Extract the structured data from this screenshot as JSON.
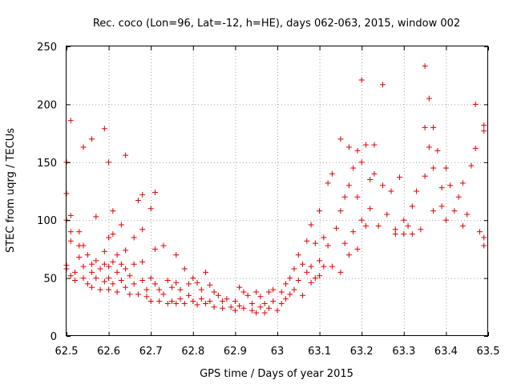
{
  "chart_data": {
    "type": "scatter",
    "title": "Rec. coco (Lon=96, Lat=-12, h=HE), days 062-063, 2015, window 002",
    "xlabel": "GPS time / Days of year 2015",
    "ylabel": "STEC from uqrg / TECUs",
    "xlim": [
      62.5,
      63.5
    ],
    "ylim": [
      0,
      250
    ],
    "xticks": [
      "62.5",
      "62.6",
      "62.7",
      "62.8",
      "62.9",
      "63",
      "63.1",
      "63.2",
      "63.3",
      "63.4",
      "63.5"
    ],
    "yticks": [
      "0",
      "50",
      "100",
      "150",
      "200",
      "250"
    ],
    "grid": true,
    "marker": "+",
    "color": "#e00000",
    "series": [
      {
        "name": "STEC",
        "points": [
          [
            62.5,
            123
          ],
          [
            62.5,
            150
          ],
          [
            62.5,
            100
          ],
          [
            62.51,
            104
          ],
          [
            62.51,
            186
          ],
          [
            62.51,
            90
          ],
          [
            62.51,
            82
          ],
          [
            62.5,
            61
          ],
          [
            62.5,
            58
          ],
          [
            62.51,
            52
          ],
          [
            62.52,
            55
          ],
          [
            62.52,
            48
          ],
          [
            62.53,
            90
          ],
          [
            62.53,
            78
          ],
          [
            62.53,
            68
          ],
          [
            62.54,
            163
          ],
          [
            62.54,
            78
          ],
          [
            62.54,
            60
          ],
          [
            62.54,
            50
          ],
          [
            62.55,
            45
          ],
          [
            62.55,
            70
          ],
          [
            62.56,
            170
          ],
          [
            62.56,
            62
          ],
          [
            62.56,
            55
          ],
          [
            62.56,
            42
          ],
          [
            62.57,
            103
          ],
          [
            62.57,
            65
          ],
          [
            62.57,
            50
          ],
          [
            62.58,
            58
          ],
          [
            62.58,
            40
          ],
          [
            62.59,
            179
          ],
          [
            62.59,
            73
          ],
          [
            62.59,
            62
          ],
          [
            62.59,
            47
          ],
          [
            62.6,
            150
          ],
          [
            62.6,
            85
          ],
          [
            62.6,
            60
          ],
          [
            62.6,
            50
          ],
          [
            62.6,
            40
          ],
          [
            62.61,
            108
          ],
          [
            62.61,
            88
          ],
          [
            62.61,
            64
          ],
          [
            62.61,
            45
          ],
          [
            62.62,
            70
          ],
          [
            62.62,
            55
          ],
          [
            62.62,
            38
          ],
          [
            62.63,
            96
          ],
          [
            62.63,
            62
          ],
          [
            62.63,
            48
          ],
          [
            62.64,
            156
          ],
          [
            62.64,
            74
          ],
          [
            62.64,
            58
          ],
          [
            62.64,
            42
          ],
          [
            62.65,
            52
          ],
          [
            62.65,
            36
          ],
          [
            62.66,
            85
          ],
          [
            62.66,
            62
          ],
          [
            62.66,
            45
          ],
          [
            62.67,
            117
          ],
          [
            62.67,
            36
          ],
          [
            62.68,
            122
          ],
          [
            62.68,
            92
          ],
          [
            62.68,
            64
          ],
          [
            62.68,
            48
          ],
          [
            62.69,
            40
          ],
          [
            62.69,
            34
          ],
          [
            62.7,
            110
          ],
          [
            62.7,
            50
          ],
          [
            62.7,
            30
          ],
          [
            62.71,
            124
          ],
          [
            62.71,
            75
          ],
          [
            62.71,
            45
          ],
          [
            62.72,
            40
          ],
          [
            62.72,
            30
          ],
          [
            62.73,
            78
          ],
          [
            62.73,
            36
          ],
          [
            62.74,
            48
          ],
          [
            62.74,
            28
          ],
          [
            62.75,
            42
          ],
          [
            62.75,
            30
          ],
          [
            62.76,
            70
          ],
          [
            62.76,
            46
          ],
          [
            62.76,
            28
          ],
          [
            62.77,
            40
          ],
          [
            62.77,
            32
          ],
          [
            62.78,
            58
          ],
          [
            62.78,
            28
          ],
          [
            62.79,
            45
          ],
          [
            62.79,
            35
          ],
          [
            62.8,
            50
          ],
          [
            62.8,
            30
          ],
          [
            62.81,
            46
          ],
          [
            62.81,
            27
          ],
          [
            62.82,
            40
          ],
          [
            62.82,
            32
          ],
          [
            62.83,
            55
          ],
          [
            62.83,
            28
          ],
          [
            62.84,
            44
          ],
          [
            62.84,
            30
          ],
          [
            62.85,
            38
          ],
          [
            62.85,
            25
          ],
          [
            62.86,
            35
          ],
          [
            62.87,
            30
          ],
          [
            62.87,
            24
          ],
          [
            62.88,
            32
          ],
          [
            62.89,
            25
          ],
          [
            62.9,
            30
          ],
          [
            62.9,
            22
          ],
          [
            62.91,
            42
          ],
          [
            62.91,
            26
          ],
          [
            62.92,
            38
          ],
          [
            62.92,
            24
          ],
          [
            62.93,
            35
          ],
          [
            62.94,
            28
          ],
          [
            62.94,
            22
          ],
          [
            62.95,
            38
          ],
          [
            62.95,
            20
          ],
          [
            62.96,
            34
          ],
          [
            62.96,
            25
          ],
          [
            62.97,
            28
          ],
          [
            62.97,
            20
          ],
          [
            62.98,
            38
          ],
          [
            62.98,
            24
          ],
          [
            62.99,
            40
          ],
          [
            62.99,
            30
          ],
          [
            63.0,
            22
          ],
          [
            63.01,
            38
          ],
          [
            63.01,
            28
          ],
          [
            63.02,
            45
          ],
          [
            63.02,
            32
          ],
          [
            63.03,
            50
          ],
          [
            63.03,
            36
          ],
          [
            63.04,
            58
          ],
          [
            63.04,
            40
          ],
          [
            63.05,
            70
          ],
          [
            63.05,
            48
          ],
          [
            63.06,
            62
          ],
          [
            63.06,
            35
          ],
          [
            63.07,
            82
          ],
          [
            63.07,
            55
          ],
          [
            63.08,
            96
          ],
          [
            63.08,
            60
          ],
          [
            63.08,
            46
          ],
          [
            63.09,
            80
          ],
          [
            63.09,
            50
          ],
          [
            63.1,
            108
          ],
          [
            63.1,
            65
          ],
          [
            63.1,
            52
          ],
          [
            63.11,
            85
          ],
          [
            63.11,
            60
          ],
          [
            63.12,
            132
          ],
          [
            63.12,
            78
          ],
          [
            63.13,
            140
          ],
          [
            63.13,
            60
          ],
          [
            63.14,
            93
          ],
          [
            63.15,
            170
          ],
          [
            63.15,
            108
          ],
          [
            63.15,
            55
          ],
          [
            63.16,
            120
          ],
          [
            63.16,
            80
          ],
          [
            63.17,
            163
          ],
          [
            63.17,
            130
          ],
          [
            63.17,
            70
          ],
          [
            63.18,
            145
          ],
          [
            63.18,
            90
          ],
          [
            63.19,
            160
          ],
          [
            63.19,
            120
          ],
          [
            63.19,
            75
          ],
          [
            63.2,
            221
          ],
          [
            63.2,
            150
          ],
          [
            63.2,
            100
          ],
          [
            63.21,
            165
          ],
          [
            63.21,
            95
          ],
          [
            63.22,
            135
          ],
          [
            63.22,
            110
          ],
          [
            63.23,
            165
          ],
          [
            63.23,
            140
          ],
          [
            63.24,
            95
          ],
          [
            63.25,
            217
          ],
          [
            63.25,
            130
          ],
          [
            63.26,
            105
          ],
          [
            63.27,
            125
          ],
          [
            63.28,
            92
          ],
          [
            63.28,
            88
          ],
          [
            63.29,
            137
          ],
          [
            63.3,
            100
          ],
          [
            63.3,
            88
          ],
          [
            63.31,
            95
          ],
          [
            63.32,
            88
          ],
          [
            63.32,
            112
          ],
          [
            63.33,
            125
          ],
          [
            63.34,
            92
          ],
          [
            63.35,
            233
          ],
          [
            63.35,
            180
          ],
          [
            63.35,
            138
          ],
          [
            63.36,
            205
          ],
          [
            63.36,
            163
          ],
          [
            63.37,
            180
          ],
          [
            63.37,
            145
          ],
          [
            63.37,
            108
          ],
          [
            63.38,
            160
          ],
          [
            63.39,
            128
          ],
          [
            63.39,
            112
          ],
          [
            63.4,
            145
          ],
          [
            63.4,
            100
          ],
          [
            63.41,
            130
          ],
          [
            63.42,
            108
          ],
          [
            63.43,
            120
          ],
          [
            63.44,
            132
          ],
          [
            63.44,
            95
          ],
          [
            63.45,
            105
          ],
          [
            63.46,
            147
          ],
          [
            63.47,
            162
          ],
          [
            63.47,
            200
          ],
          [
            63.48,
            90
          ],
          [
            63.49,
            182
          ],
          [
            63.49,
            177
          ],
          [
            63.49,
            85
          ],
          [
            63.49,
            78
          ]
        ]
      }
    ]
  }
}
